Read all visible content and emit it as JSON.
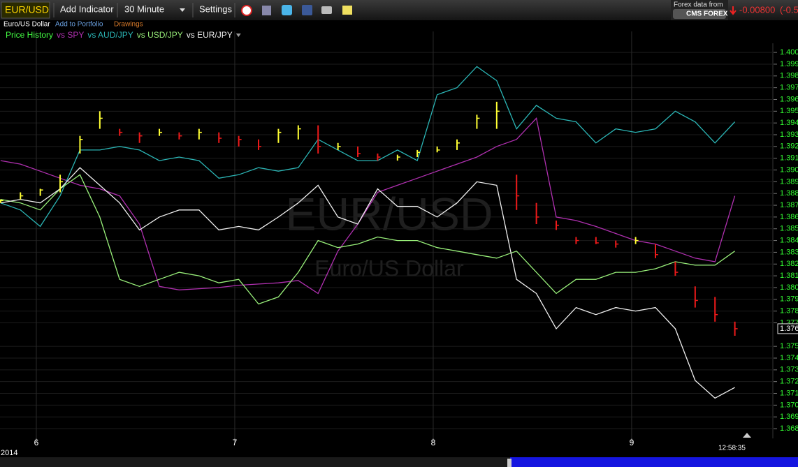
{
  "toolbar": {
    "symbol": "EUR/USD",
    "add_indicator": "Add Indicator",
    "interval": "30 Minute",
    "settings": "Settings",
    "source_label": "Forex data from",
    "source": "CMS FOREX",
    "change": "-0.00800",
    "change_pct": "(-0.5"
  },
  "subbar": {
    "name": "Euro/US Dollar",
    "add_to_portfolio": "Add to Portfolio",
    "drawings": "Drawings"
  },
  "chart_data": {
    "type": "ohlc-compare",
    "watermark": "EUR/USD",
    "watermark_subtitle": "Euro/US Dollar",
    "year_label": "2014",
    "time_label": "12:58:35",
    "grid": true,
    "xlim": [
      5.817,
      9.708
    ],
    "xticks": [
      6,
      7,
      8,
      9
    ],
    "ylim": [
      1.36735,
      1.4006
    ],
    "yticks": [
      {
        "value": 1.4,
        "label": "1.400"
      },
      1.399,
      1.398,
      1.397,
      1.396,
      1.395,
      1.394,
      1.393,
      1.392,
      1.391,
      {
        "value": 1.39,
        "label": "1.390"
      },
      1.389,
      1.388,
      1.387,
      1.386,
      1.385,
      1.384,
      1.383,
      1.382,
      1.381,
      {
        "value": 1.38,
        "label": "1.380"
      },
      1.379,
      1.378,
      1.377,
      1.375,
      1.374,
      1.373,
      1.372,
      1.371,
      {
        "value": 1.37,
        "label": "1.370"
      },
      1.369,
      1.368
    ],
    "last_price": {
      "value": 1.3765,
      "label": "1.376"
    },
    "x": [
      5.82,
      5.92,
      6.02,
      6.12,
      6.22,
      6.32,
      6.42,
      6.52,
      6.62,
      6.72,
      6.82,
      6.92,
      7.02,
      7.12,
      7.22,
      7.32,
      7.42,
      7.52,
      7.62,
      7.72,
      7.82,
      7.92,
      8.02,
      8.12,
      8.22,
      8.32,
      8.42,
      8.52,
      8.62,
      8.72,
      8.82,
      8.92,
      9.02,
      9.12,
      9.22,
      9.32,
      9.42,
      9.52
    ],
    "price_history": {
      "name": "Price History",
      "color": "#44ff44",
      "up_color": "#ffff33",
      "down_color": "#ee1a1a",
      "high": [
        1.3875,
        1.3881,
        1.3884,
        1.3896,
        1.3929,
        1.395,
        1.3935,
        1.3932,
        1.3935,
        1.3932,
        1.3935,
        1.3932,
        1.3929,
        1.3926,
        1.3935,
        1.3938,
        1.3938,
        1.3923,
        1.392,
        1.3914,
        1.3913,
        1.3917,
        1.392,
        1.3926,
        1.3947,
        1.3958,
        1.3896,
        1.3872,
        1.3857,
        1.3843,
        1.3843,
        1.384,
        1.3843,
        1.3837,
        1.3822,
        1.3801,
        1.3792,
        1.3771
      ],
      "low": [
        1.3872,
        1.3875,
        1.3878,
        1.3881,
        1.3914,
        1.3935,
        1.3929,
        1.3923,
        1.3929,
        1.3926,
        1.3926,
        1.3923,
        1.392,
        1.3917,
        1.3923,
        1.3926,
        1.3914,
        1.3917,
        1.3911,
        1.3908,
        1.3908,
        1.3911,
        1.3915,
        1.3917,
        1.3935,
        1.3935,
        1.3866,
        1.3854,
        1.3849,
        1.3837,
        1.3837,
        1.3834,
        1.3837,
        1.3825,
        1.381,
        1.3783,
        1.3771,
        1.3759
      ],
      "close": [
        1.3874,
        1.3878,
        1.3883,
        1.389,
        1.3926,
        1.3944,
        1.3932,
        1.3929,
        1.3932,
        1.3929,
        1.3932,
        1.3927,
        1.3926,
        1.392,
        1.3932,
        1.3935,
        1.392,
        1.392,
        1.3914,
        1.3911,
        1.3911,
        1.3915,
        1.3917,
        1.3923,
        1.3944,
        1.395,
        1.3878,
        1.386,
        1.3853,
        1.384,
        1.3838,
        1.3837,
        1.384,
        1.3828,
        1.3813,
        1.3789,
        1.3777,
        1.3765
      ]
    },
    "series": [
      {
        "name": "vs SPY",
        "color": "#b030b0",
        "values": [
          1.3908,
          1.3905,
          1.3899,
          1.3893,
          1.3887,
          1.3884,
          1.3878,
          1.3854,
          1.3801,
          1.3798,
          1.3799,
          1.38,
          1.3802,
          1.3803,
          1.3804,
          1.3806,
          1.3795,
          1.3831,
          1.3854,
          1.3881,
          1.3887,
          1.3893,
          1.3899,
          1.3905,
          1.3911,
          1.392,
          1.3926,
          1.3944,
          1.386,
          1.3857,
          1.3852,
          1.3846,
          1.384,
          1.3837,
          1.3831,
          1.3825,
          1.3822,
          1.3878
        ]
      },
      {
        "name": "vs AUD/JPY",
        "color": "#2bb5b5",
        "values": [
          1.3872,
          1.3866,
          1.3852,
          1.3878,
          1.3917,
          1.3917,
          1.392,
          1.3917,
          1.3908,
          1.3911,
          1.3908,
          1.3893,
          1.3896,
          1.3902,
          1.3899,
          1.3902,
          1.3926,
          1.3917,
          1.3908,
          1.3908,
          1.3917,
          1.3908,
          1.3964,
          1.397,
          1.3988,
          1.3976,
          1.3935,
          1.3955,
          1.3944,
          1.3941,
          1.3923,
          1.3935,
          1.3932,
          1.3935,
          1.395,
          1.3941,
          1.3923,
          1.3941
        ]
      },
      {
        "name": "vs USD/JPY",
        "color": "#99f07a",
        "values": [
          1.3875,
          1.3872,
          1.3866,
          1.3884,
          1.3896,
          1.386,
          1.3807,
          1.3801,
          1.3807,
          1.3813,
          1.381,
          1.3804,
          1.3807,
          1.3786,
          1.3792,
          1.3813,
          1.384,
          1.3834,
          1.3837,
          1.3843,
          1.384,
          1.384,
          1.3834,
          1.3831,
          1.3828,
          1.3825,
          1.3831,
          1.3813,
          1.3795,
          1.3807,
          1.3807,
          1.3813,
          1.3813,
          1.3816,
          1.3822,
          1.3819,
          1.3819,
          1.3831
        ]
      },
      {
        "name": "vs EUR/JPY",
        "color": "#f0f0f0",
        "values": [
          1.3872,
          1.3875,
          1.3872,
          1.3884,
          1.3902,
          1.3887,
          1.3872,
          1.3849,
          1.386,
          1.3866,
          1.3866,
          1.3849,
          1.3852,
          1.3849,
          1.386,
          1.3872,
          1.3887,
          1.386,
          1.3854,
          1.3884,
          1.3869,
          1.3869,
          1.386,
          1.3872,
          1.389,
          1.3887,
          1.3807,
          1.3795,
          1.3765,
          1.3783,
          1.3777,
          1.3783,
          1.378,
          1.3783,
          1.3765,
          1.3721,
          1.3706,
          1.3715
        ]
      }
    ]
  }
}
